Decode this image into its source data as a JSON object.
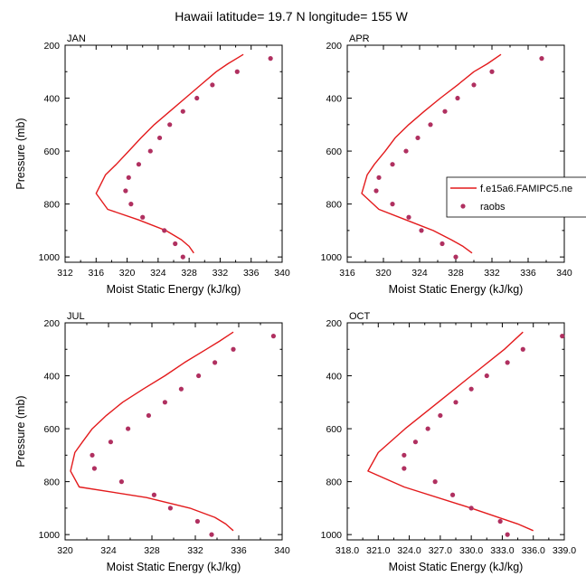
{
  "title": "Hawaii  latitude= 19.7 N longitude= 155 W",
  "legend": {
    "line_label": "f.e15a6.FAMIPC5.ne",
    "dot_label": "raobs"
  },
  "colors": {
    "line": "#e31a1c",
    "dots": "#b03060"
  },
  "chart_data": [
    {
      "type": "line+scatter",
      "panel": "JAN",
      "xlabel": "Moist Static Energy (kJ/kg)",
      "ylabel": "Pressure (mb)",
      "xlim": [
        312,
        340
      ],
      "ylim": [
        1020,
        200
      ],
      "xticks": [
        312,
        316,
        320,
        324,
        328,
        332,
        336,
        340
      ],
      "xtick_labels": [
        "312",
        "316",
        "320",
        "324",
        "328",
        "332",
        "336",
        "340"
      ],
      "yticks": [
        200,
        400,
        600,
        800,
        1000
      ],
      "model": {
        "name": "f.e15a6.FAMIPC5.ne",
        "pressure": [
          235,
          270,
          300,
          350,
          400,
          450,
          500,
          550,
          600,
          650,
          690,
          760,
          820,
          860,
          900,
          935,
          960,
          985
        ],
        "values": [
          335.0,
          333.0,
          331.5,
          329.5,
          327.5,
          325.5,
          323.5,
          321.8,
          320.2,
          318.6,
          317.2,
          316.0,
          317.5,
          321.5,
          325.0,
          327.0,
          328.0,
          328.6
        ]
      },
      "raobs": {
        "name": "raobs",
        "pressure": [
          250,
          300,
          350,
          400,
          450,
          500,
          550,
          600,
          650,
          700,
          750,
          800,
          850,
          900,
          950,
          1000
        ],
        "values": [
          338.5,
          334.2,
          331.0,
          329.0,
          327.2,
          325.5,
          324.2,
          323.0,
          321.5,
          320.2,
          319.8,
          320.5,
          322.0,
          324.8,
          326.2,
          327.2
        ]
      }
    },
    {
      "type": "line+scatter",
      "panel": "APR",
      "xlabel": "Moist Static Energy (kJ/kg)",
      "ylabel": "",
      "xlim": [
        316,
        340
      ],
      "ylim": [
        1020,
        200
      ],
      "xticks": [
        316,
        320,
        324,
        328,
        332,
        336,
        340
      ],
      "xtick_labels": [
        "316",
        "320",
        "324",
        "328",
        "332",
        "336",
        "340"
      ],
      "yticks": [
        200,
        400,
        600,
        800,
        1000
      ],
      "model": {
        "name": "f.e15a6.FAMIPC5.ne",
        "pressure": [
          235,
          270,
          300,
          350,
          400,
          450,
          500,
          550,
          600,
          650,
          690,
          760,
          820,
          860,
          900,
          935,
          960,
          985
        ],
        "values": [
          333.0,
          331.5,
          330.0,
          328.2,
          326.3,
          324.5,
          322.8,
          321.3,
          320.2,
          319.0,
          318.2,
          317.6,
          319.5,
          322.5,
          325.5,
          327.5,
          328.8,
          329.8
        ]
      },
      "raobs": {
        "name": "raobs",
        "pressure": [
          250,
          300,
          350,
          400,
          450,
          500,
          550,
          600,
          650,
          700,
          750,
          800,
          850,
          900,
          950,
          1000
        ],
        "values": [
          337.5,
          332.0,
          330.0,
          328.2,
          326.8,
          325.2,
          323.8,
          322.5,
          321.0,
          319.5,
          319.2,
          321.0,
          322.8,
          324.2,
          326.5,
          328.0
        ]
      }
    },
    {
      "type": "line+scatter",
      "panel": "JUL",
      "xlabel": "Moist Static Energy (kJ/kg)",
      "ylabel": "Pressure (mb)",
      "xlim": [
        320,
        340
      ],
      "ylim": [
        1020,
        200
      ],
      "xticks": [
        320,
        324,
        328,
        332,
        336,
        340
      ],
      "xtick_labels": [
        "320",
        "324",
        "328",
        "332",
        "336",
        "340"
      ],
      "yticks": [
        200,
        400,
        600,
        800,
        1000
      ],
      "model": {
        "name": "f.e15a6.FAMIPC5.ne",
        "pressure": [
          235,
          270,
          300,
          350,
          400,
          450,
          500,
          550,
          600,
          650,
          690,
          760,
          820,
          860,
          900,
          935,
          960,
          985
        ],
        "values": [
          335.5,
          334.2,
          333.0,
          331.0,
          329.2,
          327.2,
          325.3,
          323.8,
          322.5,
          321.6,
          320.9,
          320.5,
          321.3,
          327.5,
          331.5,
          333.8,
          334.8,
          335.5
        ]
      },
      "raobs": {
        "name": "raobs",
        "pressure": [
          250,
          300,
          350,
          400,
          450,
          500,
          550,
          600,
          650,
          700,
          750,
          800,
          850,
          900,
          950,
          1000
        ],
        "values": [
          339.2,
          335.5,
          333.8,
          332.3,
          330.7,
          329.2,
          327.7,
          325.8,
          324.2,
          322.5,
          322.7,
          325.2,
          328.2,
          329.7,
          332.2,
          333.5
        ]
      }
    },
    {
      "type": "line+scatter",
      "panel": "OCT",
      "xlabel": "Moist Static Energy (kJ/kg)",
      "ylabel": "",
      "xlim": [
        318.0,
        339.0
      ],
      "ylim": [
        1020,
        200
      ],
      "xticks": [
        318,
        321,
        324,
        327,
        330,
        333,
        336,
        339
      ],
      "xtick_labels": [
        "318.0",
        "321.0",
        "324.0",
        "327.0",
        "330.0",
        "333.0",
        "336.0",
        "339.0"
      ],
      "yticks": [
        200,
        400,
        600,
        800,
        1000
      ],
      "model": {
        "name": "f.e15a6.FAMIPC5.ne",
        "pressure": [
          235,
          300,
          400,
          500,
          600,
          690,
          760,
          820,
          900,
          960,
          985
        ],
        "values": [
          335.0,
          333.2,
          330.0,
          326.8,
          323.6,
          321.0,
          320.0,
          323.5,
          330.0,
          334.5,
          336.0
        ]
      },
      "raobs": {
        "name": "raobs",
        "pressure": [
          250,
          300,
          350,
          400,
          450,
          500,
          550,
          600,
          650,
          700,
          750,
          800,
          850,
          900,
          950,
          1000
        ],
        "values": [
          338.8,
          335.0,
          333.5,
          331.5,
          330.0,
          328.5,
          327.0,
          325.8,
          324.6,
          323.5,
          323.5,
          326.5,
          328.2,
          330.0,
          332.8,
          333.5
        ]
      }
    }
  ]
}
